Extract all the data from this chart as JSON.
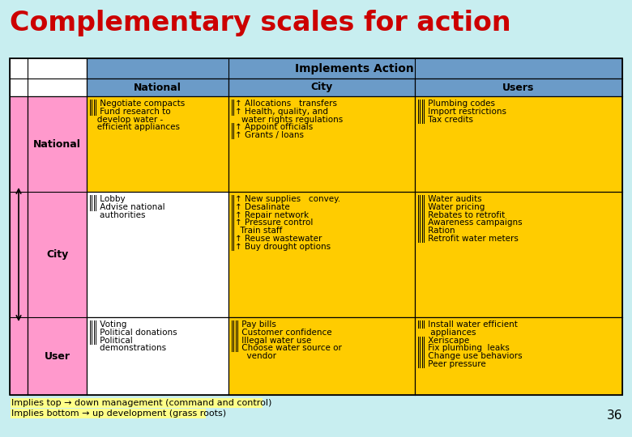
{
  "title": "Complementary scales for action",
  "title_color": "#CC0000",
  "bg_color": "#C8EEF0",
  "slide_number": "36",
  "header_bg": "#6B9BC8",
  "row_header_bg": "#FF99CC",
  "cell_bg_yellow": "#FFCC00",
  "cell_bg_white": "#FFFFFF",
  "note_bg": "#FFFF88",
  "note1": "Implies top → down management (command and control)",
  "note2": "Implies bottom → up development (grass roots)",
  "bullet": "ǁǁ",
  "bullet2": "ǁ↑",
  "cell_texts": {
    "national_national": [
      "ǁǁ Negotiate compacts",
      "ǁǁ Fund research to",
      "   develop water -",
      "   efficient appliances"
    ],
    "national_city": [
      "ǁ↑ Allocations   transfers",
      "ǁ↑ Health, quality, and",
      "    water rights regulations",
      "ǁ↑ Appoint officials",
      "ǁ↑ Grants / loans"
    ],
    "national_users": [
      "ǁǁ Plumbing codes",
      "ǁǁ Import restrictions",
      "ǁǁ Tax credits"
    ],
    "city_national": [
      "ǁǁ Lobby",
      "ǁǁ Advise national",
      "    authorities"
    ],
    "city_city": [
      "ǁ↑ New supplies   convey.",
      "ǁ↑ Desalinate",
      "ǁ↑ Repair network",
      "ǁ↑ Pressure control",
      "ǁ  Train staff",
      "ǁ↑ Reuse wastewater",
      "ǁ↑ Buy drought options"
    ],
    "city_users": [
      "ǁǁ Water audits",
      "ǁǁ Water pricing",
      "ǁǁ Rebates to retrofit",
      "ǁǁ Awareness campaigns",
      "ǁǁ Ration",
      "ǁǁ Retrofit water meters"
    ],
    "user_national": [
      "ǁǁ Voting",
      "ǁǁ Political donations",
      "ǁǁ Political",
      "    demonstrations"
    ],
    "user_city": [
      "ǁǁ Pay bills",
      "ǁǁ Customer confidence",
      "ǁǁ Illegal water use",
      "ǁǁ Choose water source or",
      "      vendor"
    ],
    "user_users": [
      "ǁǁ Install water efficient",
      "     appliances",
      "ǁǁ Xeriscape",
      "ǁǁ Fix plumbing  leaks",
      "ǁǁ Change use behaviors",
      "ǁǁ Peer pressure"
    ]
  }
}
